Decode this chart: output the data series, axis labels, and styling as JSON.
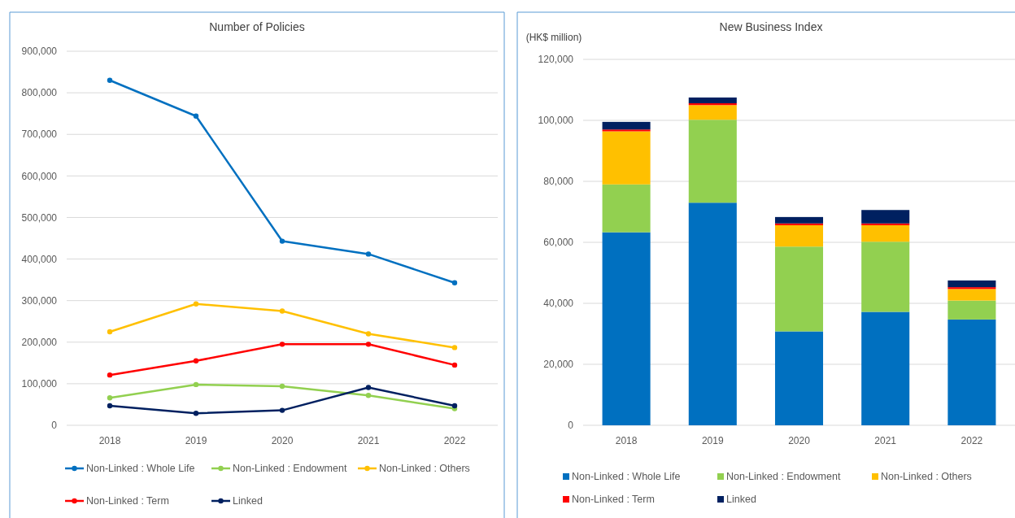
{
  "chart_data": [
    {
      "type": "line",
      "title": "Number of Policies",
      "categories": [
        "2018",
        "2019",
        "2020",
        "2021",
        "2022"
      ],
      "series": [
        {
          "name": "Non-Linked : Whole Life",
          "color": "#0070c0",
          "values": [
            830000,
            744000,
            443000,
            412000,
            343000
          ]
        },
        {
          "name": "Non-Linked : Endowment",
          "color": "#92d050",
          "values": [
            66000,
            98000,
            94000,
            72000,
            40000
          ]
        },
        {
          "name": "Non-Linked : Others",
          "color": "#ffc000",
          "values": [
            225000,
            292000,
            275000,
            220000,
            187000
          ]
        },
        {
          "name": "Non-Linked : Term",
          "color": "#ff0000",
          "values": [
            121000,
            155000,
            195000,
            195000,
            145000
          ]
        },
        {
          "name": "Linked",
          "color": "#002060",
          "values": [
            47000,
            29000,
            36000,
            91000,
            47000
          ]
        }
      ],
      "ylim": [
        0,
        900000
      ],
      "yticks": [
        0,
        {
          "value": 100000,
          "label": "100,000"
        },
        {
          "value": 200000,
          "label": "200,000"
        },
        {
          "value": 300000,
          "label": "300,000"
        },
        {
          "value": 400000,
          "label": "400,000"
        },
        {
          "value": 500000,
          "label": "500,000"
        },
        {
          "value": 600000,
          "label": "600,000"
        },
        {
          "value": 700000,
          "label": "700,000"
        },
        {
          "value": 800000,
          "label": "800,000"
        },
        {
          "value": 900000,
          "label": "900,000"
        }
      ],
      "grid": "y",
      "legend": "bottom",
      "marker": "circle"
    },
    {
      "type": "bar",
      "title": "New Business Index",
      "ylabel": "(HK$ million)",
      "categories": [
        "2018",
        "2019",
        "2020",
        "2021",
        "2022"
      ],
      "stacked": true,
      "series": [
        {
          "name": "Non-Linked : Whole Life",
          "color": "#0070c0",
          "values": [
            63300,
            73000,
            30800,
            37200,
            34700
          ]
        },
        {
          "name": "Non-Linked : Endowment",
          "color": "#92d050",
          "values": [
            15700,
            27200,
            27800,
            23000,
            6200
          ]
        },
        {
          "name": "Non-Linked : Others",
          "color": "#ffc000",
          "values": [
            17400,
            4800,
            7000,
            5400,
            3800
          ]
        },
        {
          "name": "Non-Linked : Term",
          "color": "#ff0000",
          "values": [
            600,
            600,
            600,
            600,
            600
          ]
        },
        {
          "name": "Linked",
          "color": "#002060",
          "values": [
            2500,
            1900,
            2100,
            4400,
            2200
          ]
        }
      ],
      "ylim": [
        0,
        120000
      ],
      "yticks": [
        0,
        {
          "value": 20000,
          "label": "20,000"
        },
        {
          "value": 40000,
          "label": "40,000"
        },
        {
          "value": 60000,
          "label": "60,000"
        },
        {
          "value": 80000,
          "label": "80,000"
        },
        {
          "value": 100000,
          "label": "100,000"
        },
        {
          "value": 120000,
          "label": "120,000"
        }
      ],
      "grid": "y",
      "legend": "bottom"
    }
  ]
}
